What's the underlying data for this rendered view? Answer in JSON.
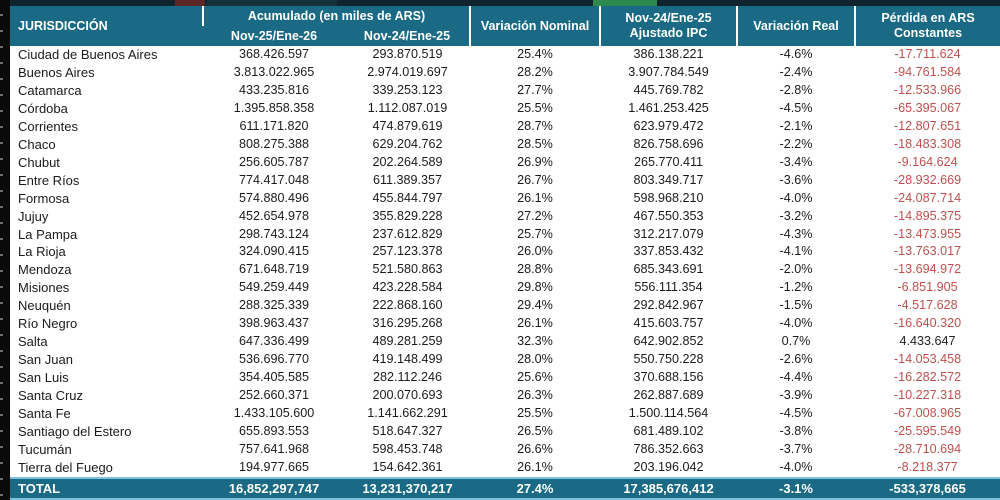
{
  "labels": {
    "jurisdiccion": "JURISDICCIÓN",
    "acumulado_group": "Acumulado (en miles de ARS)",
    "nov25_ene26": "Nov-25/Ene-26",
    "nov24_ene25": "Nov-24/Ene-25",
    "variacion_nominal": "Variación Nominal",
    "ajustado_ipc_line1": "Nov-24/Ene-25",
    "ajustado_ipc_line2": "Ajustado IPC",
    "variacion_real": "Variación Real",
    "perdida_line1": "Pérdida en ARS",
    "perdida_line2": "Constantes",
    "total": "TOTAL"
  },
  "colors": {
    "header_teal": "#1a6a85",
    "negative_red": "#c0504d",
    "positive_black": "#222222",
    "accent_light_blue": "#7fc0dd",
    "edge_black": "#0a0a0a",
    "top_band": "#10242e",
    "top_green": "#2c8a4e",
    "top_dark_green": "#14343a",
    "top_maroon": "#5e2626"
  },
  "chart_data": {
    "type": "table",
    "title": "Acumulado (en miles de ARS)",
    "columns": [
      "JURISDICCIÓN",
      "Nov-25/Ene-26",
      "Nov-24/Ene-25",
      "Variación Nominal",
      "Nov-24/Ene-25 Ajustado IPC",
      "Variación Real",
      "Pérdida en ARS Constantes"
    ],
    "rows": [
      [
        "Ciudad de Buenos Aires",
        "368.426.597",
        "293.870.519",
        "25.4%",
        "386.138.221",
        "-4.6%",
        "-17.711.624"
      ],
      [
        "Buenos Aires",
        "3.813.022.965",
        "2.974.019.697",
        "28.2%",
        "3.907.784.549",
        "-2.4%",
        "-94.761.584"
      ],
      [
        "Catamarca",
        "433.235.816",
        "339.253.123",
        "27.7%",
        "445.769.782",
        "-2.8%",
        "-12.533.966"
      ],
      [
        "Córdoba",
        "1.395.858.358",
        "1.112.087.019",
        "25.5%",
        "1.461.253.425",
        "-4.5%",
        "-65.395.067"
      ],
      [
        "Corrientes",
        "611.171.820",
        "474.879.619",
        "28.7%",
        "623.979.472",
        "-2.1%",
        "-12.807.651"
      ],
      [
        "Chaco",
        "808.275.388",
        "629.204.762",
        "28.5%",
        "826.758.696",
        "-2.2%",
        "-18.483.308"
      ],
      [
        "Chubut",
        "256.605.787",
        "202.264.589",
        "26.9%",
        "265.770.411",
        "-3.4%",
        "-9.164.624"
      ],
      [
        "Entre Ríos",
        "774.417.048",
        "611.389.357",
        "26.7%",
        "803.349.717",
        "-3.6%",
        "-28.932.669"
      ],
      [
        "Formosa",
        "574.880.496",
        "455.844.797",
        "26.1%",
        "598.968.210",
        "-4.0%",
        "-24.087.714"
      ],
      [
        "Jujuy",
        "452.654.978",
        "355.829.228",
        "27.2%",
        "467.550.353",
        "-3.2%",
        "-14.895.375"
      ],
      [
        "La Pampa",
        "298.743.124",
        "237.612.829",
        "25.7%",
        "312.217.079",
        "-4.3%",
        "-13.473.955"
      ],
      [
        "La Rioja",
        "324.090.415",
        "257.123.378",
        "26.0%",
        "337.853.432",
        "-4.1%",
        "-13.763.017"
      ],
      [
        "Mendoza",
        "671.648.719",
        "521.580.863",
        "28.8%",
        "685.343.691",
        "-2.0%",
        "-13.694.972"
      ],
      [
        "Misiones",
        "549.259.449",
        "423.228.584",
        "29.8%",
        "556.111.354",
        "-1.2%",
        "-6.851.905"
      ],
      [
        "Neuquén",
        "288.325.339",
        "222.868.160",
        "29.4%",
        "292.842.967",
        "-1.5%",
        "-4.517.628"
      ],
      [
        "Río Negro",
        "398.963.437",
        "316.295.268",
        "26.1%",
        "415.603.757",
        "-4.0%",
        "-16.640.320"
      ],
      [
        "Salta",
        "647.336.499",
        "489.281.259",
        "32.3%",
        "642.902.852",
        "0.7%",
        "4.433.647"
      ],
      [
        "San Juan",
        "536.696.770",
        "419.148.499",
        "28.0%",
        "550.750.228",
        "-2.6%",
        "-14.053.458"
      ],
      [
        "San Luis",
        "354.405.585",
        "282.112.246",
        "25.6%",
        "370.688.156",
        "-4.4%",
        "-16.282.572"
      ],
      [
        "Santa Cruz",
        "252.660.371",
        "200.070.693",
        "26.3%",
        "262.887.689",
        "-3.9%",
        "-10.227.318"
      ],
      [
        "Santa Fe",
        "1.433.105.600",
        "1.141.662.291",
        "25.5%",
        "1.500.114.564",
        "-4.5%",
        "-67.008.965"
      ],
      [
        "Santiago del Estero",
        "655.893.553",
        "518.647.327",
        "26.5%",
        "681.489.102",
        "-3.8%",
        "-25.595.549"
      ],
      [
        "Tucumán",
        "757.641.968",
        "598.453.748",
        "26.6%",
        "786.352.663",
        "-3.7%",
        "-28.710.694"
      ],
      [
        "Tierra del Fuego",
        "194.977.665",
        "154.642.361",
        "26.1%",
        "203.196.042",
        "-4.0%",
        "-8.218.377"
      ]
    ],
    "total_row": [
      "TOTAL",
      "16,852,297,747",
      "13,231,370,217",
      "27.4%",
      "17,385,676,412",
      "-3.1%",
      "-533,378,665"
    ]
  }
}
